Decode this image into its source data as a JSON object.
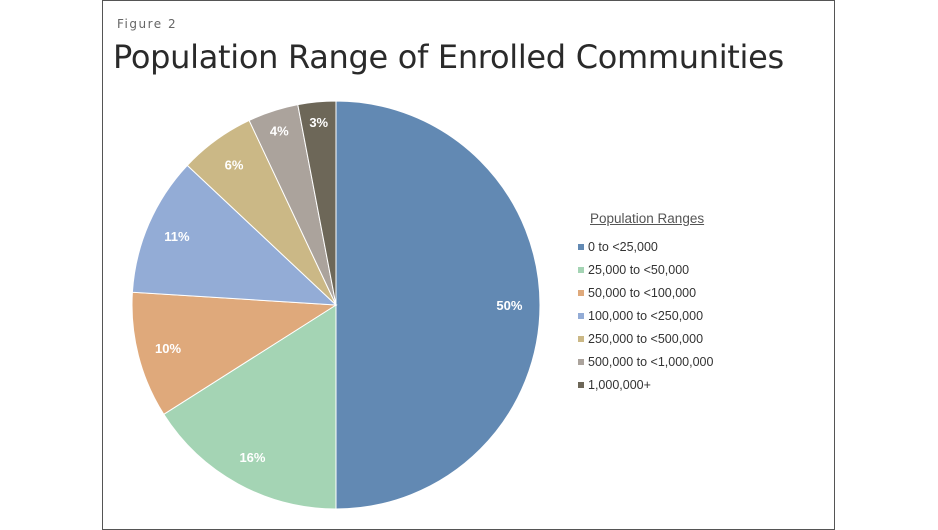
{
  "chart_data": {
    "type": "pie",
    "figure_label": "Figure 2",
    "title": "Population Range of Enrolled Communities",
    "legend_title": "Population Ranges",
    "legend_position": "right",
    "categories": [
      "0 to <25,000",
      "25,000 to <50,000",
      "50,000 to <100,000",
      "100,000 to <250,000",
      "250,000 to <500,000",
      "500,000 to <1,000,000",
      "1,000,000+"
    ],
    "values": [
      50,
      16,
      10,
      11,
      6,
      4,
      3
    ],
    "labels": [
      "50%",
      "16%",
      "10%",
      "11%",
      "6%",
      "4%",
      "3%"
    ],
    "colors": [
      "#6289b3",
      "#a4d4b4",
      "#dfa97b",
      "#93acd6",
      "#cbb886",
      "#aba39c",
      "#6d6758"
    ]
  }
}
